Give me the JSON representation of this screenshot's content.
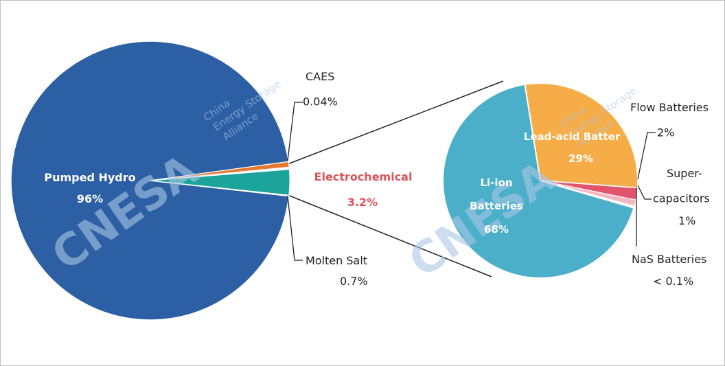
{
  "chart_data": [
    {
      "type": "pie",
      "slices": [
        {
          "label": "Pumped Hydro",
          "value_label": "96%",
          "value": 96,
          "color": "#2c5fa3"
        },
        {
          "label": "CAES",
          "value_label": "0.04%",
          "value": 0.04,
          "color": "#ffffff"
        },
        {
          "label": "",
          "value_label": "",
          "value": 0.36,
          "color": "#e8772e"
        },
        {
          "label": "Electrochemical",
          "value_label": "3.2%",
          "value": 3.2,
          "color": "#1ba39c"
        },
        {
          "label": "Molten Salt",
          "value_label": "0.7%",
          "value": 0.7,
          "color": "#ffffff"
        }
      ]
    },
    {
      "type": "pie",
      "title": "Electrochemical",
      "slices": [
        {
          "label": "Lead-acid Batter",
          "value_label": "29%",
          "value": 29,
          "color": "#f7ad47"
        },
        {
          "label": "Flow Batteries",
          "value_label": "2%",
          "value": 2,
          "color": "#e0556c"
        },
        {
          "label": "Super-capacitors",
          "value_label": "1%",
          "value": 1,
          "color": "#f4b6c2"
        },
        {
          "label": "NaS Batteries",
          "value_label": "< 0.1%",
          "value": 0.1,
          "color": "#ffffff"
        },
        {
          "label": "Li-ion Batteries",
          "value_label": "68%",
          "value": 68,
          "color": "#4cafc9"
        }
      ]
    }
  ],
  "callouts": {
    "caes": {
      "name": "CAES",
      "value": "0.04%"
    },
    "molten_salt": {
      "name": "Molten Salt",
      "value": "0.7%"
    },
    "electrochemical": {
      "name": "Electrochemical",
      "value": "3.2%"
    },
    "flow": {
      "name": "Flow Batteries",
      "value": "2%"
    },
    "supercap": {
      "name_line1": "Super-",
      "name_line2": "capacitors",
      "value": "1%"
    },
    "nas": {
      "name": "NaS Batteries",
      "value": "< 0.1%"
    }
  },
  "inner_labels": {
    "pumped_hydro": {
      "name": "Pumped Hydro",
      "value": "96%"
    },
    "lead_acid": {
      "name": "Lead-acid Batter",
      "value": "29%"
    },
    "li_ion": {
      "name_line1": "Li-ion",
      "name_line2": "Batteries",
      "value": "68%"
    }
  },
  "watermark": {
    "brand": "CNESA",
    "line1": "China",
    "line2": "Energy Storage",
    "line3": "Alliance",
    "color": "#a9c7e6"
  }
}
